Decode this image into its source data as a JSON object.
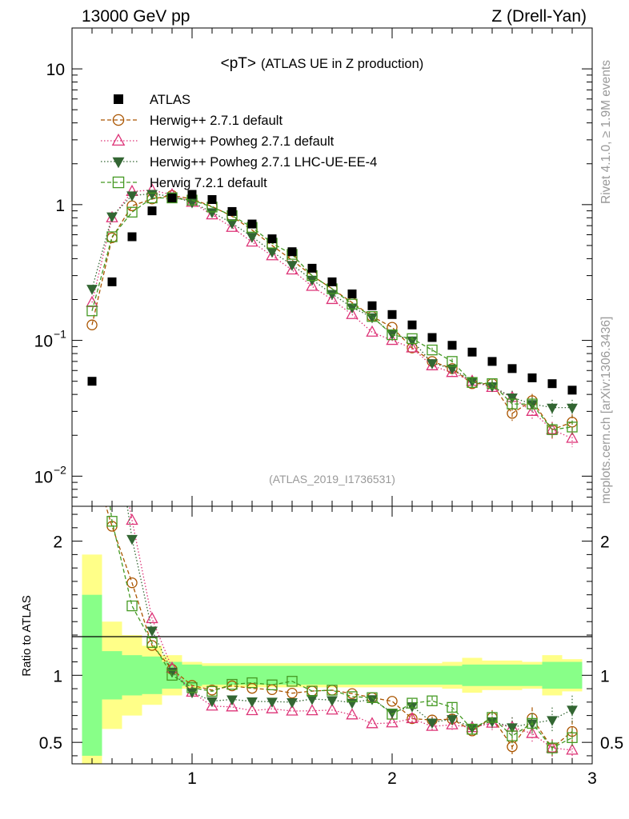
{
  "header": {
    "left": "13000 GeV pp",
    "right": "Z (Drell-Yan)"
  },
  "side": {
    "rivet": "Rivet 4.1.0, ≥ 1.9M events",
    "mcplots": "mcplots.cern.ch [arXiv:1306.3436]"
  },
  "chart_data": {
    "type": "line",
    "title": "<pT>",
    "subtitle": "(ATLAS UE in Z production)",
    "watermark": "(ATLAS_2019_I1736531)",
    "xlim": [
      0.4,
      3.0
    ],
    "ylim": [
      0.006,
      20
    ],
    "ylog": true,
    "ratio_ylabel": "Ratio to ATLAS",
    "ratio_ylim": [
      0.34,
      2.26
    ],
    "main_ticks": [
      {
        "v": 10,
        "base": "10",
        "exp": ""
      },
      {
        "v": 1,
        "base": "1",
        "exp": ""
      },
      {
        "v": 0.1,
        "base": "10",
        "exp": "−1"
      },
      {
        "v": 0.01,
        "base": "10",
        "exp": "−2"
      }
    ],
    "ratio_ticks": [
      {
        "v": 2,
        "label": "2"
      },
      {
        "v": 1,
        "label": "1"
      },
      {
        "v": 0.5,
        "label": "0.5"
      }
    ],
    "x_ticks": [
      {
        "v": 1,
        "label": "1"
      },
      {
        "v": 2,
        "label": "2"
      },
      {
        "v": 3,
        "label": "3"
      }
    ],
    "x": [
      0.5,
      0.6,
      0.7,
      0.8,
      0.9,
      1.0,
      1.1,
      1.2,
      1.3,
      1.4,
      1.5,
      1.6,
      1.7,
      1.8,
      1.9,
      2.0,
      2.1,
      2.2,
      2.3,
      2.4,
      2.5,
      2.6,
      2.7,
      2.8,
      2.9
    ],
    "data": {
      "name": "ATLAS",
      "values": [
        0.05,
        0.27,
        0.58,
        0.9,
        1.12,
        1.19,
        1.09,
        0.89,
        0.72,
        0.56,
        0.45,
        0.34,
        0.27,
        0.22,
        0.18,
        0.155,
        0.13,
        0.105,
        0.092,
        0.082,
        0.07,
        0.062,
        0.053,
        0.048,
        0.043
      ],
      "band_inner": [
        0.6,
        0.18,
        0.15,
        0.14,
        0.1,
        0.08,
        0.07,
        0.07,
        0.07,
        0.07,
        0.07,
        0.07,
        0.07,
        0.07,
        0.07,
        0.07,
        0.07,
        0.07,
        0.07,
        0.08,
        0.08,
        0.08,
        0.08,
        0.1,
        0.1
      ],
      "band_outer": [
        0.9,
        0.4,
        0.3,
        0.22,
        0.15,
        0.1,
        0.09,
        0.09,
        0.09,
        0.09,
        0.09,
        0.09,
        0.09,
        0.09,
        0.09,
        0.09,
        0.09,
        0.09,
        0.1,
        0.13,
        0.11,
        0.11,
        0.1,
        0.15,
        0.12
      ]
    },
    "series": [
      {
        "name": "Herwig++ 2.7.1 default",
        "color": "#aa5500",
        "marker": "circle",
        "dash": "5,3",
        "values": [
          0.13,
          0.57,
          0.98,
          1.1,
          1.17,
          1.1,
          0.97,
          0.82,
          0.65,
          0.5,
          0.39,
          0.3,
          0.24,
          0.19,
          0.15,
          0.125,
          0.088,
          0.07,
          0.062,
          0.048,
          0.048,
          0.029,
          0.036,
          0.022,
          0.025
        ],
        "errs": [
          0,
          0,
          0,
          0,
          0,
          0,
          0,
          0,
          0,
          0,
          0,
          0,
          0,
          0,
          0,
          0,
          0.04,
          0.04,
          0.05,
          0.08,
          0.08,
          0.12,
          0.12,
          0.14,
          0.14
        ]
      },
      {
        "name": "Herwig++ Powheg 2.7.1 default",
        "color": "#dd3377",
        "marker": "triangle-up",
        "dash": "1.5,2.5",
        "values": [
          0.19,
          0.8,
          1.25,
          1.28,
          1.18,
          1.04,
          0.84,
          0.68,
          0.53,
          0.42,
          0.33,
          0.25,
          0.2,
          0.155,
          0.115,
          0.1,
          0.088,
          0.065,
          0.058,
          0.05,
          0.045,
          0.038,
          0.03,
          0.022,
          0.019
        ],
        "errs": [
          0,
          0,
          0,
          0,
          0,
          0,
          0,
          0,
          0,
          0,
          0,
          0,
          0,
          0,
          0,
          0,
          0.05,
          0.05,
          0.06,
          0.08,
          0.08,
          0.12,
          0.12,
          0.14,
          0.14
        ]
      },
      {
        "name": "Herwig++ Powheg 2.7.1 LHC-UE-EE-4",
        "color": "#336633",
        "marker": "triangle-down",
        "dash": "1.5,2.5",
        "values": [
          0.24,
          0.82,
          1.17,
          1.2,
          1.15,
          1.04,
          0.88,
          0.73,
          0.58,
          0.45,
          0.36,
          0.28,
          0.22,
          0.175,
          0.148,
          0.112,
          0.1,
          0.068,
          0.062,
          0.05,
          0.046,
          0.038,
          0.034,
          0.032,
          0.032
        ],
        "errs": [
          0,
          0,
          0,
          0,
          0,
          0,
          0,
          0,
          0,
          0,
          0,
          0,
          0,
          0,
          0,
          0,
          0.05,
          0.05,
          0.06,
          0.08,
          0.08,
          0.12,
          0.12,
          0.14,
          0.14
        ]
      },
      {
        "name": "Herwig 7.2.1 default",
        "color": "#449922",
        "marker": "square",
        "dash": "5,3",
        "values": [
          0.165,
          0.58,
          0.88,
          1.12,
          1.12,
          1.08,
          0.96,
          0.83,
          0.68,
          0.52,
          0.43,
          0.3,
          0.24,
          0.185,
          0.15,
          0.11,
          0.103,
          0.085,
          0.07,
          0.049,
          0.048,
          0.034,
          0.034,
          0.022,
          0.023
        ],
        "errs": [
          0,
          0,
          0,
          0,
          0,
          0,
          0,
          0,
          0,
          0,
          0,
          0,
          0,
          0,
          0,
          0,
          0.04,
          0.04,
          0.05,
          0.07,
          0.07,
          0.1,
          0.1,
          0.12,
          0.12
        ]
      }
    ]
  }
}
